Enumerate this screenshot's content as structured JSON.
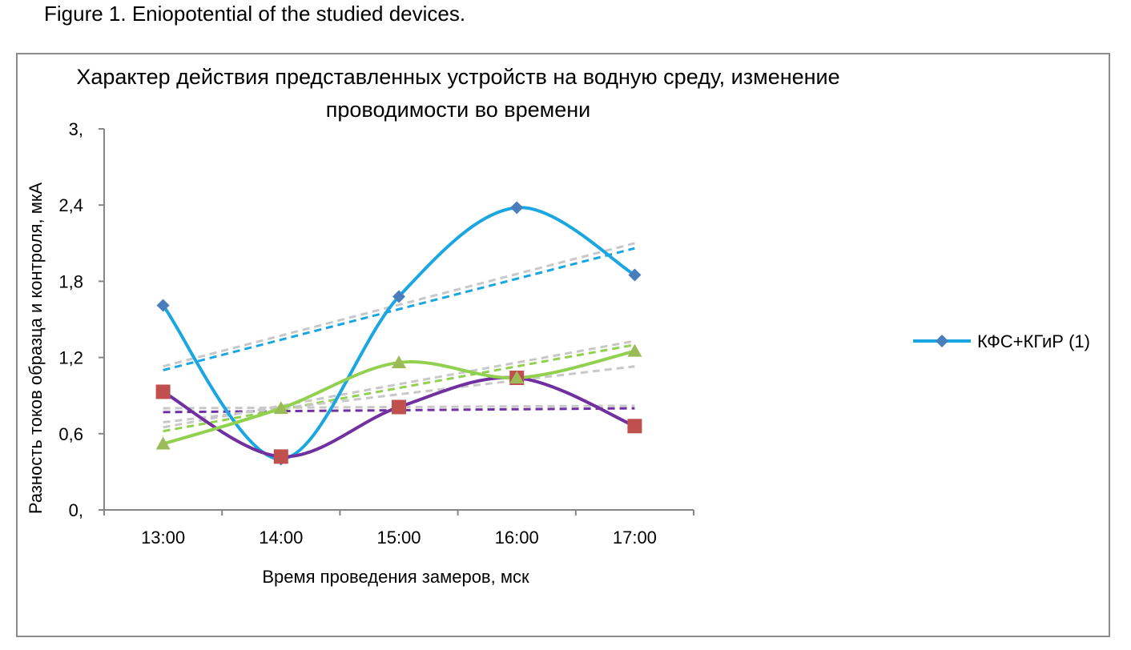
{
  "figure_caption": "Figure 1. Eniopotential of the studied devices.",
  "chart_data": {
    "type": "line",
    "title_line1": "Характер действия представленных устройств на водную среду, изменение",
    "title_line2": "проводимости во времени",
    "xlabel": "Время проведения замеров, мск",
    "ylabel": "Разность токов образца и контроля, мкА",
    "categories": [
      "13:00",
      "14:00",
      "15:00",
      "16:00",
      "17:00"
    ],
    "y_ticks": [
      "0,",
      "0,6",
      "1,2",
      "1,8",
      "2,4",
      "3,"
    ],
    "ylim": [
      0,
      3
    ],
    "grid": false,
    "legend_position": "right",
    "series": [
      {
        "name": "КФС+КГиР (1)",
        "values": [
          1.61,
          0.4,
          1.68,
          2.38,
          1.85
        ],
        "color": "#1aa6e0",
        "marker_color": "#4a7ebb",
        "marker": "diamond",
        "show_in_legend": true
      },
      {
        "values": [
          0.93,
          0.42,
          0.81,
          1.04,
          0.66
        ],
        "color": "#7030a0",
        "marker_color": "#c0504d",
        "marker": "square",
        "show_in_legend": false
      },
      {
        "values": [
          0.52,
          0.8,
          1.16,
          1.04,
          1.25
        ],
        "color": "#92d050",
        "marker_color": "#9bbb59",
        "marker": "triangle",
        "show_in_legend": false
      }
    ],
    "trendlines": [
      {
        "from": 1.1,
        "to": 2.06,
        "color": "#1aa6e0"
      },
      {
        "from": 1.13,
        "to": 2.1,
        "color": "#c8c8c8"
      },
      {
        "from": 0.77,
        "to": 0.8,
        "color": "#7030a0"
      },
      {
        "from": 0.8,
        "to": 0.82,
        "color": "#c8c8c8"
      },
      {
        "from": 0.62,
        "to": 1.3,
        "color": "#92d050"
      },
      {
        "from": 0.65,
        "to": 1.33,
        "color": "#c8c8c8"
      },
      {
        "from": 0.69,
        "to": 1.13,
        "color": "#c8c8c8"
      }
    ]
  }
}
